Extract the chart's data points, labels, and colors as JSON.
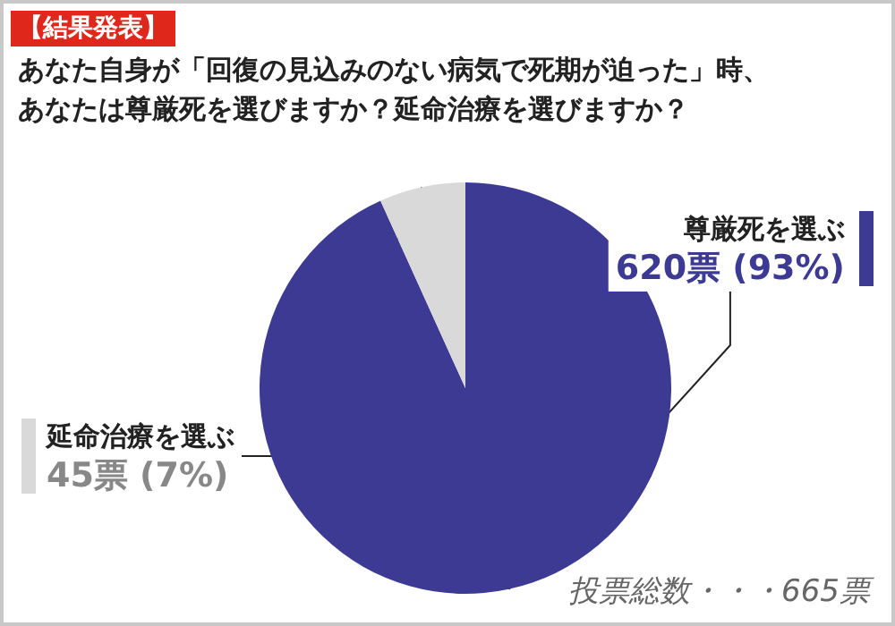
{
  "chart_data": {
    "type": "pie",
    "subtitle": "【結果発表】",
    "title": "あなた自身が「回復の見込みのない病気で死期が迫った」時、あなたは尊厳死を選びますか？延命治療を選びますか？",
    "categories": [
      "尊厳死を選ぶ",
      "延命治療を選ぶ"
    ],
    "values": [
      620,
      45
    ],
    "colors": [
      "#3d3a94",
      "#d9d9d9"
    ],
    "value_labels": [
      "620票 (93%)",
      "45票 (7%)"
    ],
    "annotations": [
      "投票総数・・・665票"
    ],
    "legend": false
  }
}
